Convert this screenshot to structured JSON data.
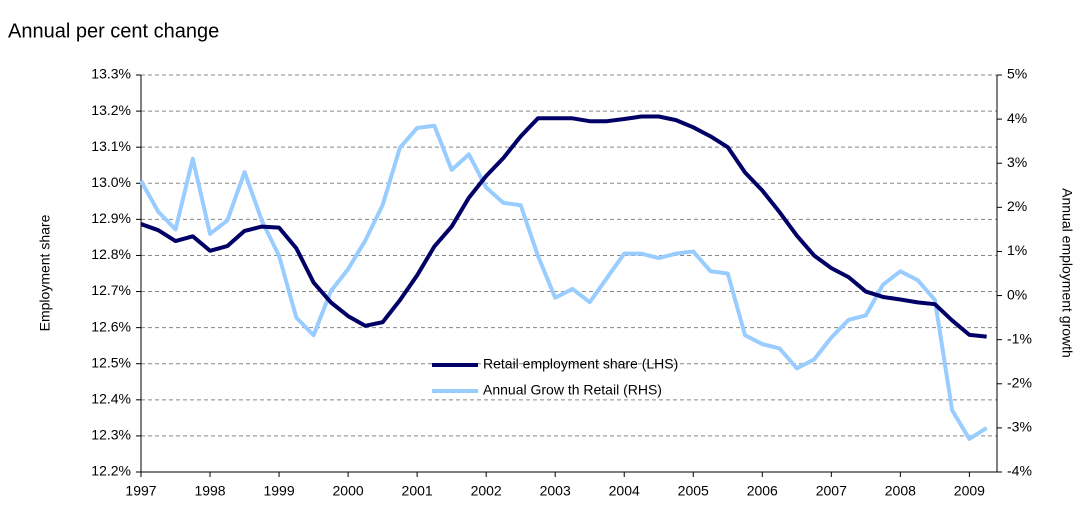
{
  "chart_data": {
    "type": "line",
    "title": "Annual per cent change",
    "y_label": "Employment share",
    "y2_label": "Annual employment growth",
    "x": [
      1997,
      1997.25,
      1997.5,
      1997.75,
      1998,
      1998.25,
      1998.5,
      1998.75,
      1999,
      1999.25,
      1999.5,
      1999.75,
      2000,
      2000.25,
      2000.5,
      2000.75,
      2001,
      2001.25,
      2001.5,
      2001.75,
      2002,
      2002.25,
      2002.5,
      2002.75,
      2003,
      2003.25,
      2003.5,
      2003.75,
      2004,
      2004.25,
      2004.5,
      2004.75,
      2005,
      2005.25,
      2005.5,
      2005.75,
      2006,
      2006.25,
      2006.5,
      2006.75,
      2007,
      2007.25,
      2007.5,
      2007.75,
      2008,
      2008.25,
      2008.5,
      2008.75,
      2009,
      2009.25
    ],
    "xlim": [
      1997,
      2009.4
    ],
    "xticks": [
      1997,
      1998,
      1999,
      2000,
      2001,
      2002,
      2003,
      2004,
      2005,
      2006,
      2007,
      2008,
      2009
    ],
    "ylim": [
      12.2,
      13.3
    ],
    "yticks": [
      {
        "value": 12.2,
        "label": "12.2%"
      },
      {
        "value": 12.3,
        "label": "12.3%"
      },
      {
        "value": 12.4,
        "label": "12.4%"
      },
      {
        "value": 12.5,
        "label": "12.5%"
      },
      {
        "value": 12.6,
        "label": "12.6%"
      },
      {
        "value": 12.7,
        "label": "12.7%"
      },
      {
        "value": 12.8,
        "label": "12.8%"
      },
      {
        "value": 12.9,
        "label": "12.9%"
      },
      {
        "value": 13.0,
        "label": "13.0%"
      },
      {
        "value": 13.1,
        "label": "13.1%"
      },
      {
        "value": 13.2,
        "label": "13.2%"
      },
      {
        "value": 13.3,
        "label": "13.3%"
      }
    ],
    "y2lim": [
      -4,
      5
    ],
    "y2ticks": [
      {
        "value": -4,
        "label": "-4%"
      },
      {
        "value": -3,
        "label": "-3%"
      },
      {
        "value": -2,
        "label": "-2%"
      },
      {
        "value": -1,
        "label": "-1%"
      },
      {
        "value": 0,
        "label": "0%"
      },
      {
        "value": 1,
        "label": "1%"
      },
      {
        "value": 2,
        "label": "2%"
      },
      {
        "value": 3,
        "label": "3%"
      },
      {
        "value": 4,
        "label": "4%"
      },
      {
        "value": 5,
        "label": "5%"
      }
    ],
    "grid": true,
    "series": [
      {
        "name": "Retail employment share (LHS)",
        "color": "#000066",
        "axis": "y",
        "values": [
          12.887,
          12.87,
          12.84,
          12.853,
          12.813,
          12.826,
          12.868,
          12.88,
          12.877,
          12.82,
          12.725,
          12.67,
          12.632,
          12.605,
          12.615,
          12.676,
          12.745,
          12.825,
          12.88,
          12.96,
          13.02,
          13.07,
          13.13,
          13.18,
          13.18,
          13.18,
          13.172,
          13.172,
          13.178,
          13.185,
          13.185,
          13.175,
          13.155,
          13.13,
          13.1,
          13.03,
          12.98,
          12.92,
          12.855,
          12.8,
          12.765,
          12.74,
          12.7,
          12.685,
          12.678,
          12.67,
          12.665,
          12.62,
          12.58,
          12.575
        ]
      },
      {
        "name": "Annual Grow th Retail (RHS)",
        "color": "#99ccff",
        "axis": "y2",
        "values": [
          2.6,
          1.9,
          1.5,
          3.1,
          1.4,
          1.7,
          2.8,
          1.7,
          0.9,
          -0.5,
          -0.9,
          0.1,
          0.6,
          1.25,
          2.05,
          3.35,
          3.8,
          3.85,
          2.85,
          3.2,
          2.45,
          2.1,
          2.05,
          0.9,
          -0.05,
          0.15,
          -0.15,
          0.4,
          0.95,
          0.95,
          0.85,
          0.95,
          1.0,
          0.55,
          0.5,
          -0.9,
          -1.1,
          -1.2,
          -1.65,
          -1.45,
          -0.95,
          -0.55,
          -0.45,
          0.25,
          0.55,
          0.35,
          -0.1,
          -2.6,
          -3.25,
          -3.0
        ]
      }
    ]
  }
}
